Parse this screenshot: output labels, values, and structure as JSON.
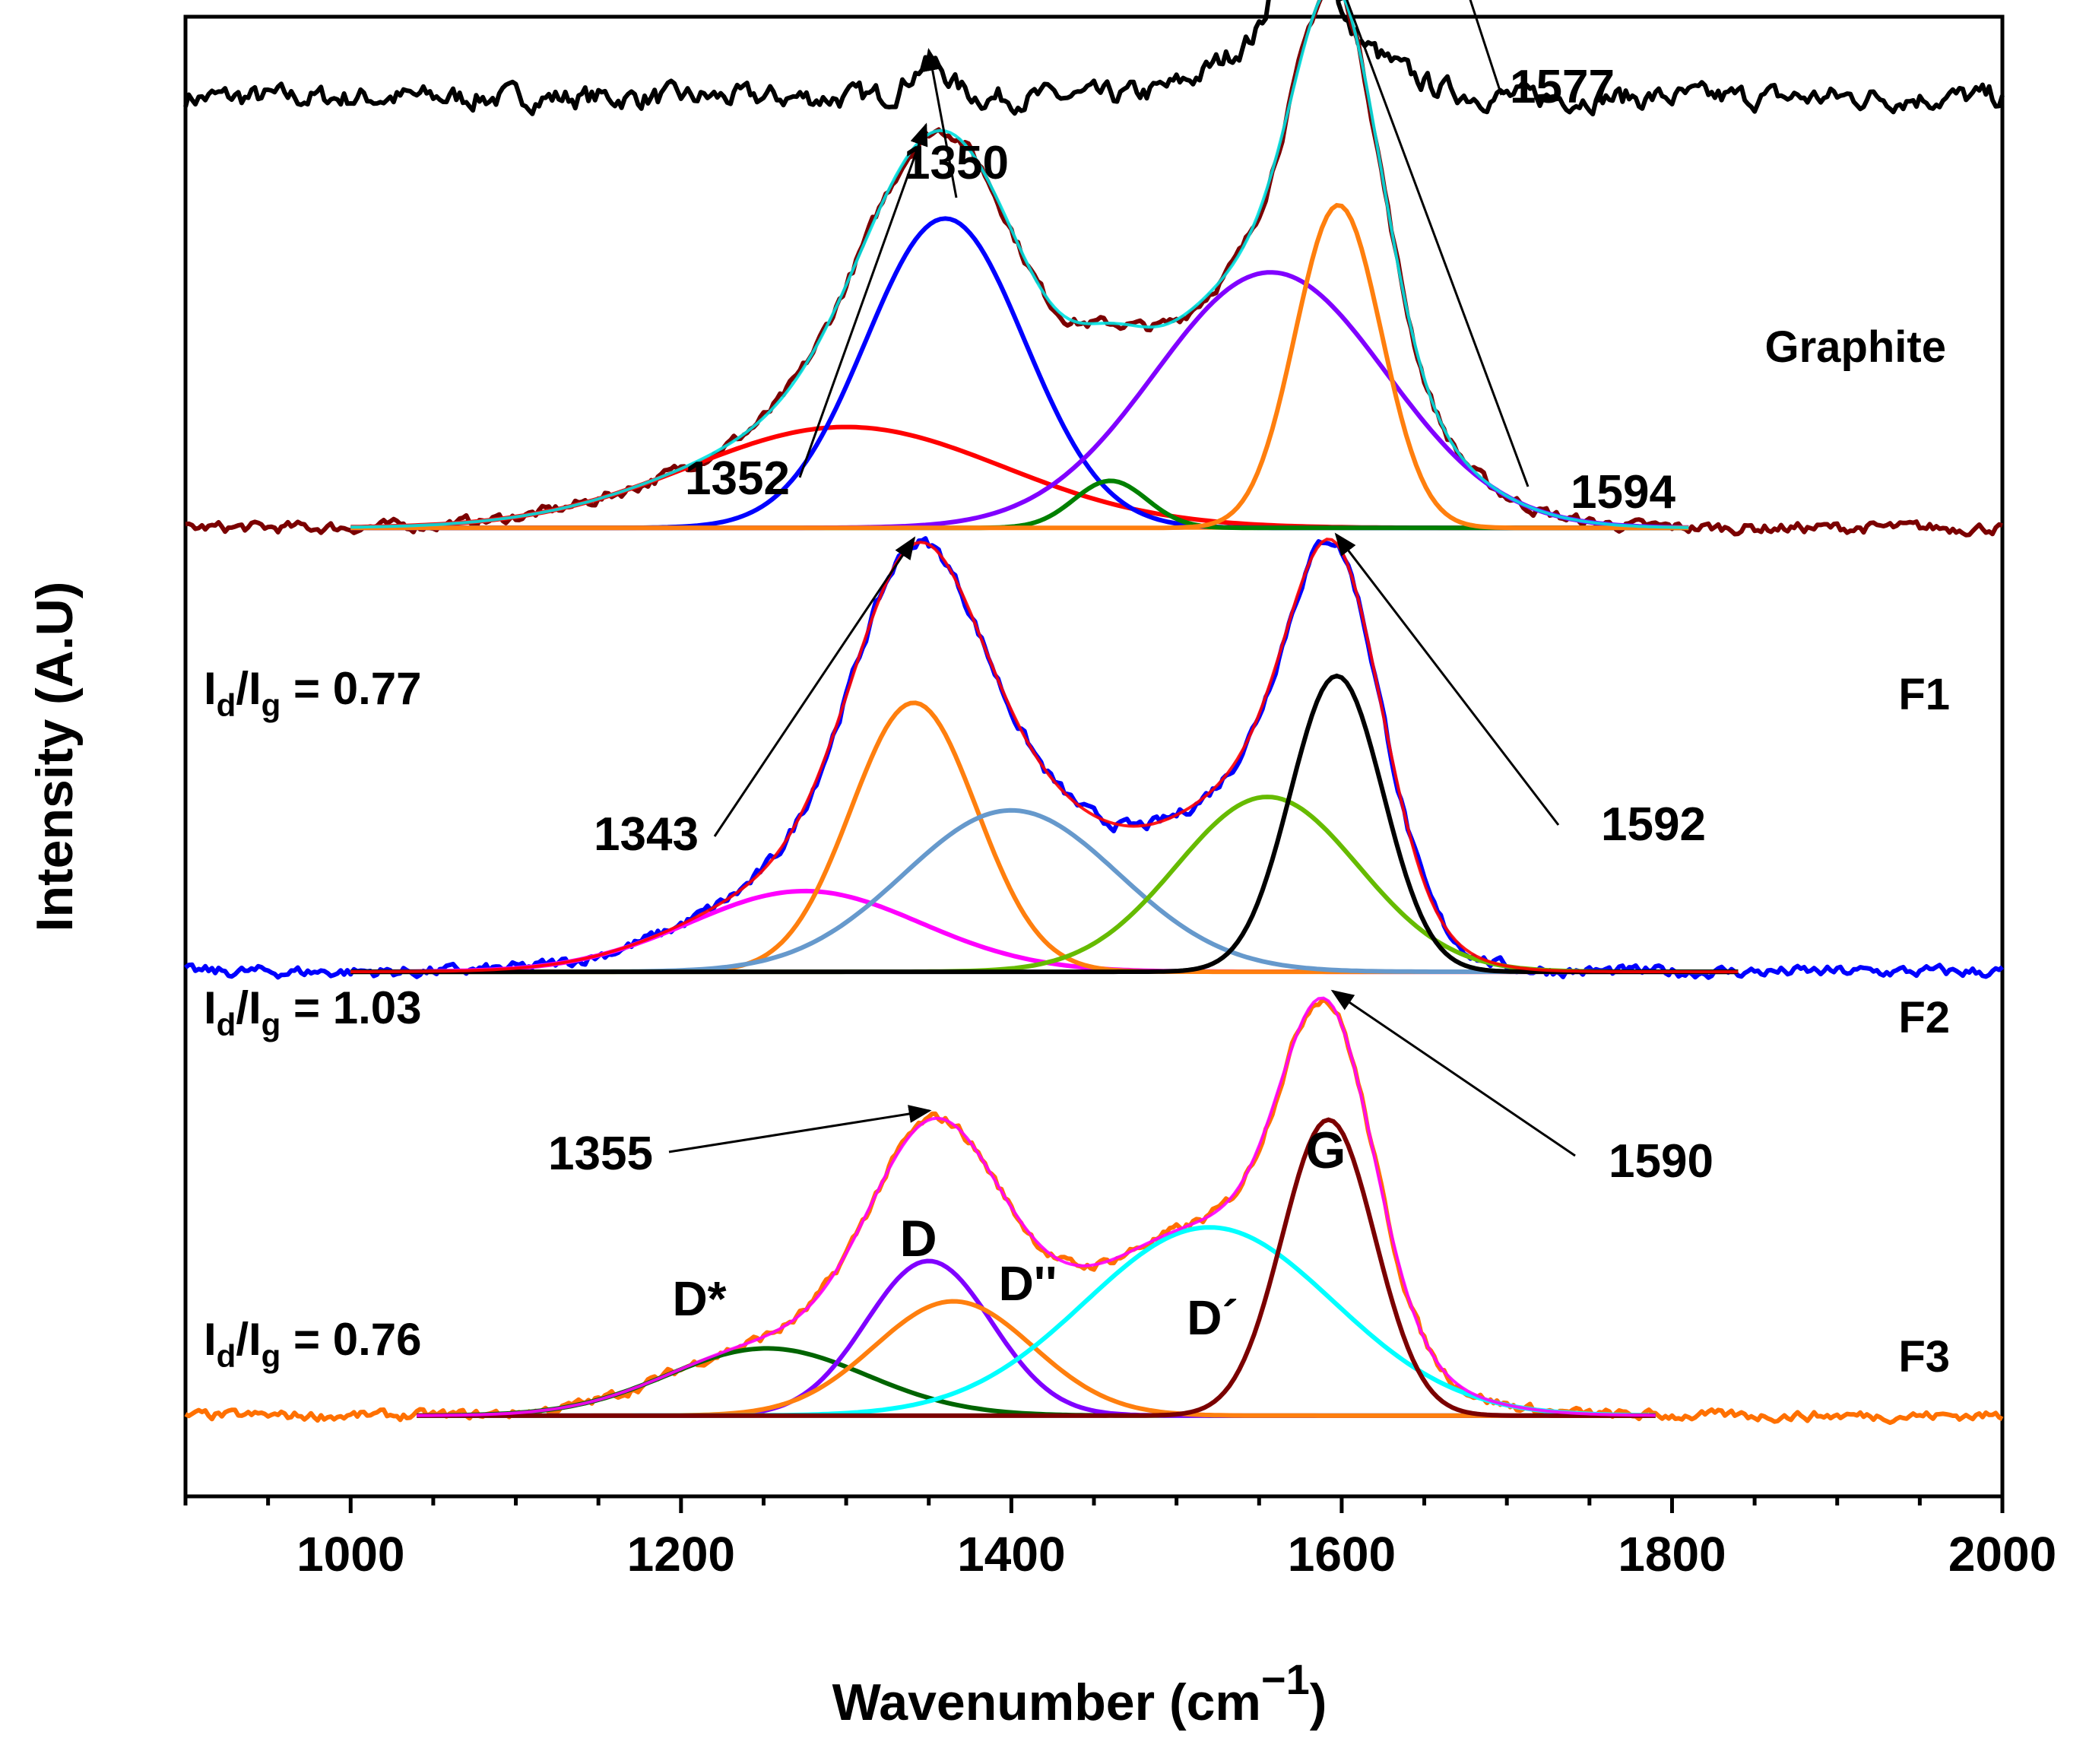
{
  "chart_data": {
    "type": "line",
    "title": "",
    "xlabel": "Wavenumber (cm",
    "xlabel_sup": "−1",
    "xlabel_close": ")",
    "ylabel": "Intensity (A.U)",
    "xlim": [
      900,
      2000
    ],
    "xticks": [
      1000,
      1200,
      1400,
      1600,
      1800,
      2000
    ],
    "xtick_labels": [
      "1000",
      "1200",
      "1400",
      "1600",
      "1800",
      "2000"
    ],
    "grid": false,
    "ylim": [
      -0.6,
      10.4
    ],
    "series": [
      {
        "name": "Graphite",
        "offset": 9.8,
        "data_color": "#000000",
        "noise": 0.07,
        "peaks": [
          {
            "center": 1350,
            "height": 0.25,
            "width": 12
          },
          {
            "center": 1577,
            "height": 3.7,
            "width": 9
          },
          {
            "center": 1577,
            "height": 0.6,
            "width": 40
          }
        ],
        "components": []
      },
      {
        "name": "F1",
        "offset": 6.6,
        "data_color": "#7b0000",
        "envelope_color": "#00e0e0",
        "fit_range": [
          1000,
          1810
        ],
        "baseline_color": "#ff7f0e",
        "noise": 0.035,
        "components": [
          {
            "color": "#ff0000",
            "center": 1300,
            "height": 0.75,
            "width": 95
          },
          {
            "color": "#0000ff",
            "center": 1360,
            "height": 2.3,
            "width": 48
          },
          {
            "color": "#008000",
            "center": 1460,
            "height": 0.35,
            "width": 22
          },
          {
            "color": "#8000ff",
            "center": 1557,
            "height": 1.9,
            "width": 70
          },
          {
            "color": "#ff7f0e",
            "center": 1598,
            "height": 2.4,
            "width": 26
          }
        ]
      },
      {
        "name": "F2",
        "offset": 3.3,
        "data_color": "#0000ff",
        "envelope_color": "#ff0000",
        "fit_range": [
          1000,
          1840
        ],
        "baseline_color": "#ff7f0e",
        "noise": 0.035,
        "components": [
          {
            "color": "#ff00ff",
            "center": 1275,
            "height": 0.6,
            "width": 70
          },
          {
            "color": "#ff7f0e",
            "center": 1341,
            "height": 2.0,
            "width": 38
          },
          {
            "color": "#6699cc",
            "center": 1400,
            "height": 1.2,
            "width": 65
          },
          {
            "color": "#66bb00",
            "center": 1555,
            "height": 1.3,
            "width": 55
          },
          {
            "color": "#000000",
            "center": 1597,
            "height": 2.2,
            "width": 28
          }
        ]
      },
      {
        "name": "F3",
        "offset": 0.0,
        "data_color": "#ff7000",
        "envelope_color": "#ff00ff",
        "fit_range": [
          1040,
          1790
        ],
        "baseline_color": "#ff7f0e",
        "noise": 0.03,
        "components": [
          {
            "color": "#006400",
            "center": 1252,
            "height": 0.5,
            "width": 60
          },
          {
            "color": "#8000ff",
            "center": 1350,
            "height": 1.15,
            "width": 38
          },
          {
            "color": "#ff7f0e",
            "center": 1365,
            "height": 0.85,
            "width": 48
          },
          {
            "color": "#00ffff",
            "center": 1520,
            "height": 1.4,
            "width": 75
          },
          {
            "color": "#7b0000",
            "center": 1592,
            "height": 2.2,
            "width": 28
          }
        ]
      }
    ],
    "annotations": [
      {
        "text": "1577",
        "x": 1577,
        "series": "Graphite"
      },
      {
        "text": "1350",
        "x": 1350,
        "series": "Graphite"
      },
      {
        "text": "1352",
        "x": 1352,
        "series": "F1"
      },
      {
        "text": "1594",
        "x": 1594,
        "series": "F1"
      },
      {
        "text": "1343",
        "x": 1343,
        "series": "F2"
      },
      {
        "text": "1592",
        "x": 1592,
        "series": "F2"
      },
      {
        "text": "1355",
        "x": 1355,
        "series": "F3"
      },
      {
        "text": "1590",
        "x": 1590,
        "series": "F3"
      }
    ],
    "series_labels": [
      "Graphite",
      "F1",
      "F2",
      "F3"
    ],
    "ratio_labels": [
      {
        "prefix": "I",
        "sub1": "d",
        "mid": "/I",
        "sub2": "g",
        "value": " = 0.77"
      },
      {
        "prefix": "I",
        "sub1": "d",
        "mid": "/I",
        "sub2": "g",
        "value": " = 1.03"
      },
      {
        "prefix": "I",
        "sub1": "d",
        "mid": "/I",
        "sub2": "g",
        "value": " = 0.76"
      }
    ],
    "peak_labels": [
      "D*",
      "D",
      "D''",
      "D´",
      "G"
    ]
  }
}
